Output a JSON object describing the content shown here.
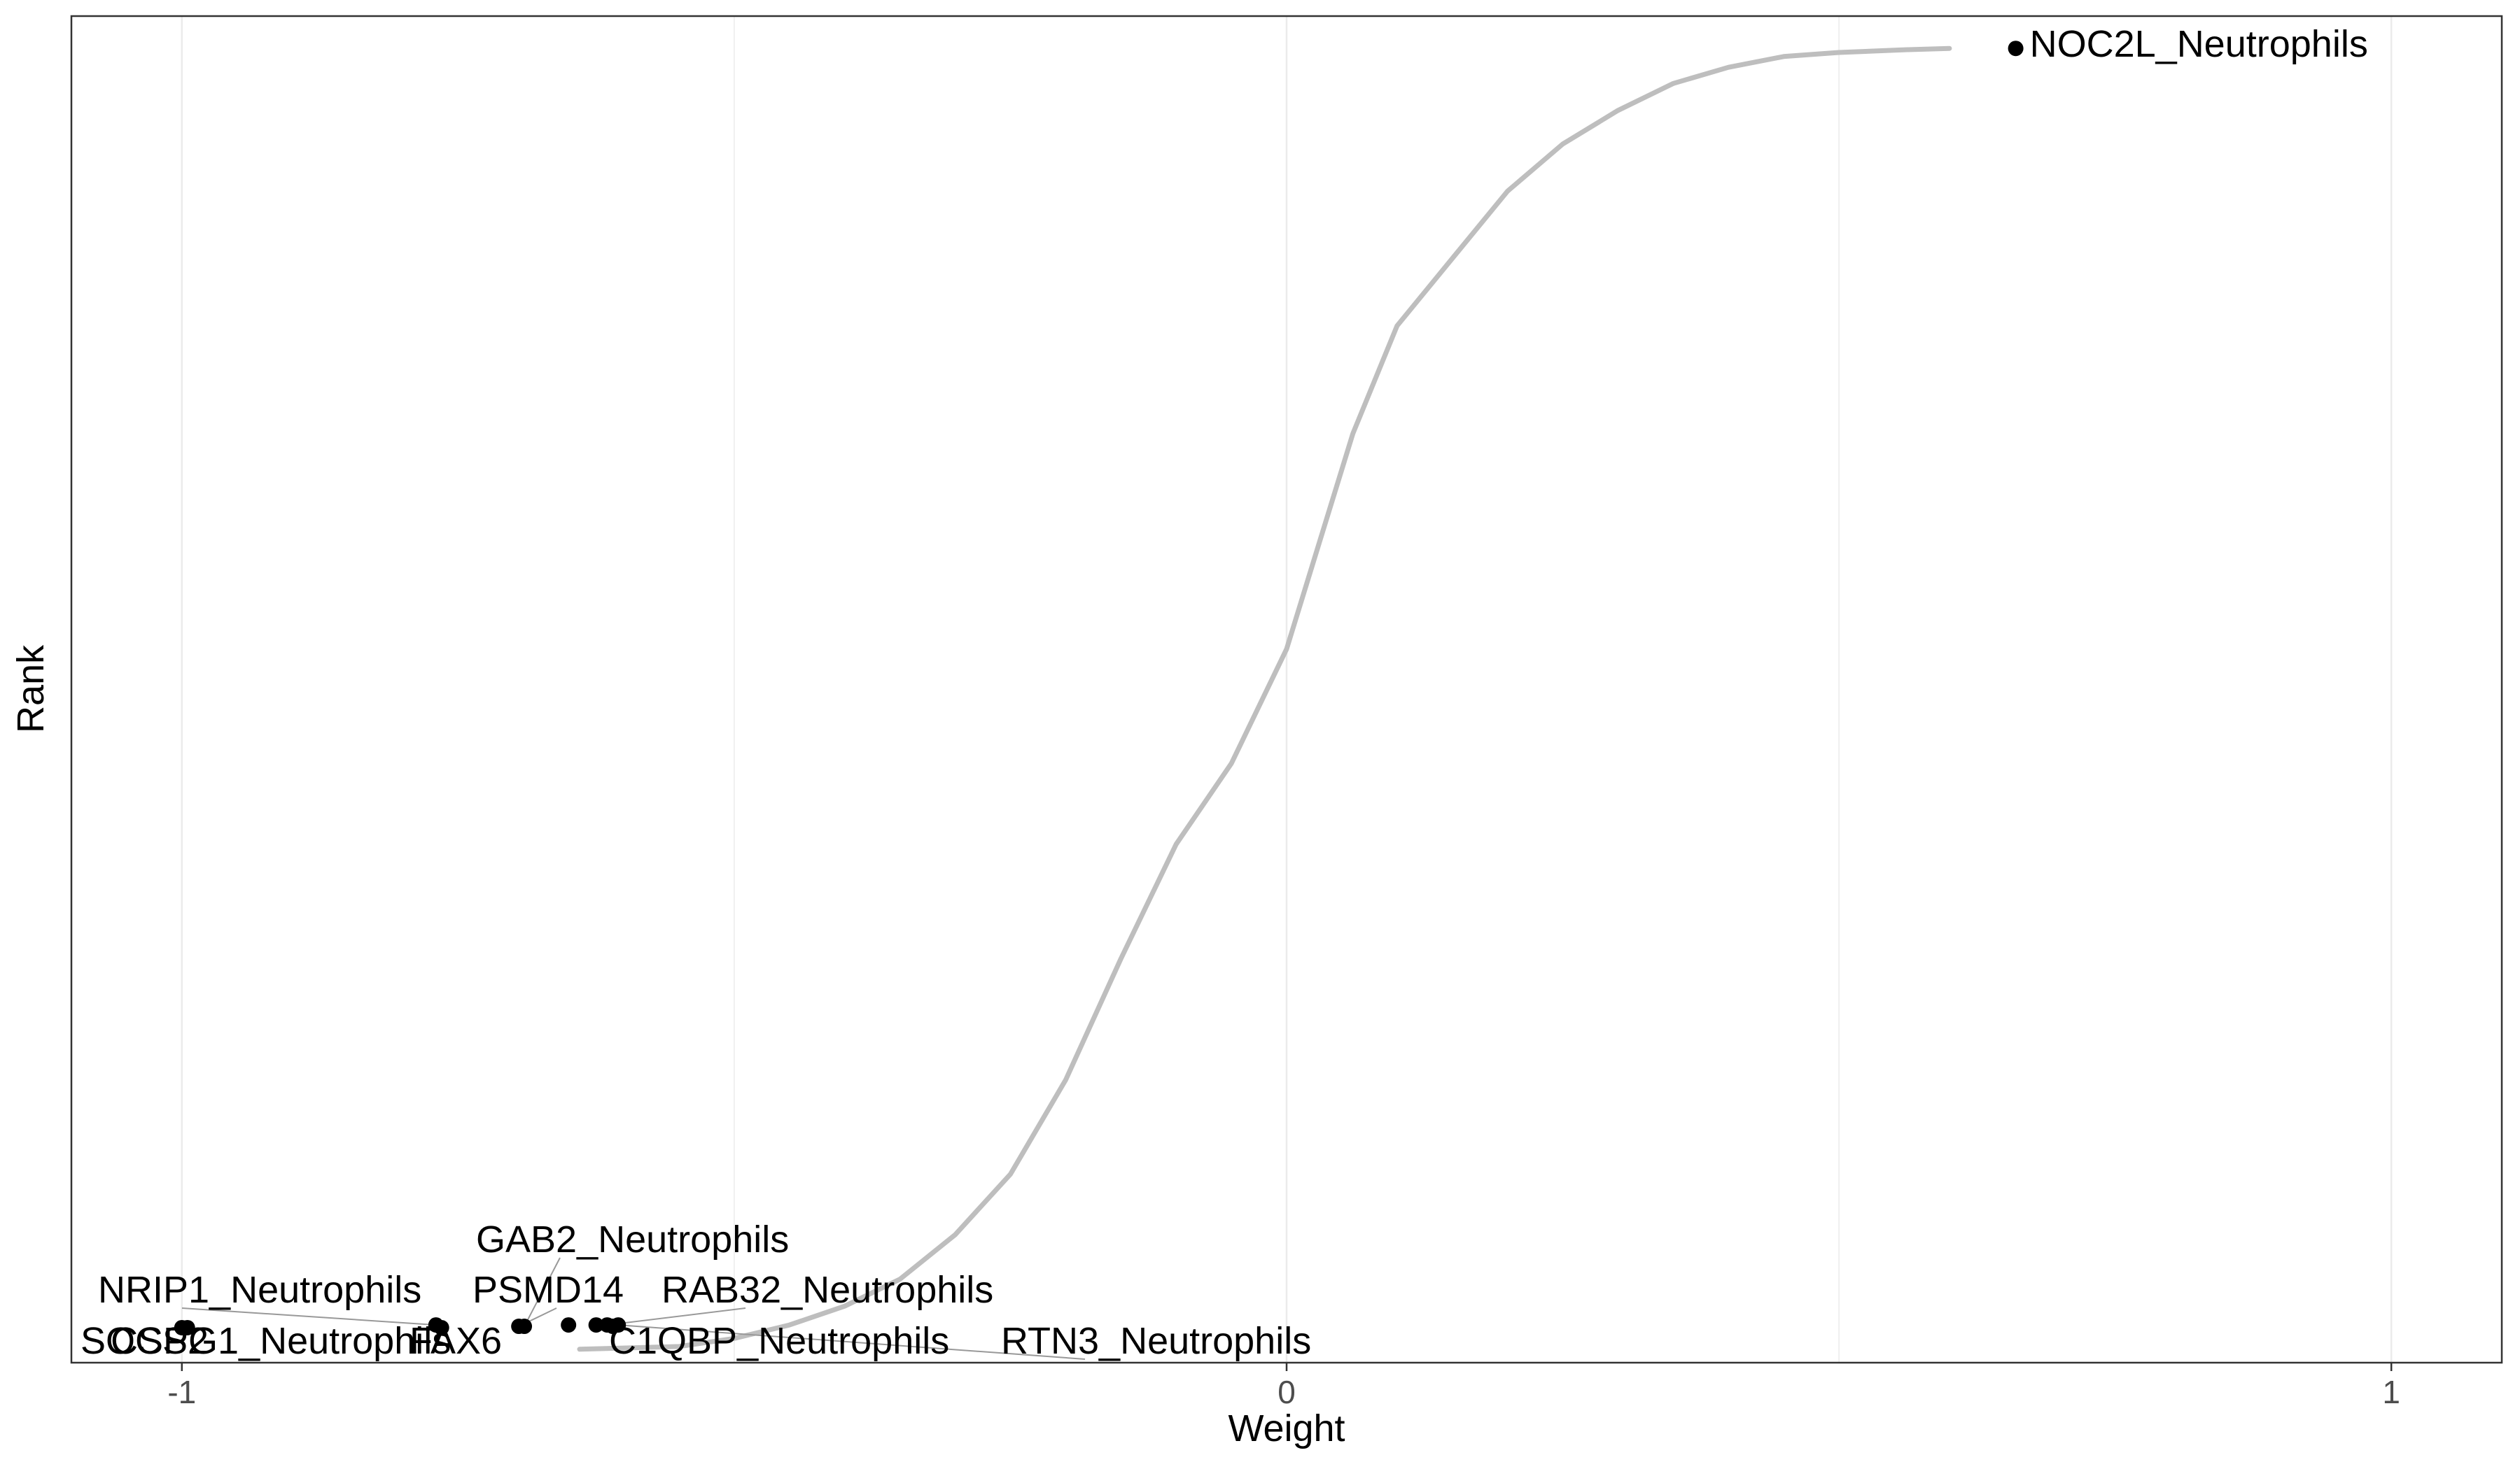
{
  "chart_data": {
    "type": "scatter",
    "title": "",
    "xlabel": "Weight",
    "ylabel": "Rank",
    "xlim": [
      -1.1,
      1.1
    ],
    "ylim": [
      0,
      1
    ],
    "x_ticks": [
      {
        "value": -1,
        "label": "-1"
      },
      {
        "value": 0,
        "label": "0"
      },
      {
        "value": 1,
        "label": "1"
      }
    ],
    "minor_grid_x": [
      -0.5,
      0.5
    ],
    "grid": true,
    "legend": "none",
    "colors": {
      "background_curve": "#bebebe",
      "highlight_points": "#000000",
      "grid": "#ebebeb",
      "panel_border": "#333333",
      "leader_lines": "#999999"
    },
    "curve": [
      [
        -0.64,
        0.01
      ],
      [
        -0.55,
        0.012
      ],
      [
        -0.5,
        0.018
      ],
      [
        -0.45,
        0.028
      ],
      [
        -0.4,
        0.042
      ],
      [
        -0.35,
        0.062
      ],
      [
        -0.3,
        0.095
      ],
      [
        -0.25,
        0.14
      ],
      [
        -0.2,
        0.21
      ],
      [
        -0.15,
        0.3
      ],
      [
        -0.1,
        0.385
      ],
      [
        -0.05,
        0.445
      ],
      [
        0.0,
        0.53
      ],
      [
        0.03,
        0.61
      ],
      [
        0.06,
        0.69
      ],
      [
        0.1,
        0.77
      ],
      [
        0.15,
        0.82
      ],
      [
        0.2,
        0.87
      ],
      [
        0.25,
        0.905
      ],
      [
        0.3,
        0.93
      ],
      [
        0.35,
        0.95
      ],
      [
        0.4,
        0.962
      ],
      [
        0.45,
        0.97
      ],
      [
        0.5,
        0.973
      ],
      [
        0.56,
        0.975
      ],
      [
        0.6,
        0.976
      ]
    ],
    "highlighted": [
      {
        "name": "NOC2L_Neutrophils",
        "x": 0.66,
        "y": 0.976,
        "label": "NOC2L_Neutrophils"
      },
      {
        "name": "SOCS2",
        "x": -1.0,
        "y": 0.026,
        "label": "SOCS2"
      },
      {
        "name": "CSPG1_Neutrophils",
        "x": -0.995,
        "y": 0.026,
        "label": "CSPG1_Neutrophils"
      },
      {
        "name": "NRIP1_Neutrophils",
        "x": -0.77,
        "y": 0.028,
        "label": "NRIP1_Neutrophils"
      },
      {
        "name": "FAX6",
        "x": -0.765,
        "y": 0.026,
        "label": "FAX6"
      },
      {
        "name": "PSMD14",
        "x": -0.695,
        "y": 0.027,
        "label": "PSMD14"
      },
      {
        "name": "GAB2_Neutrophils",
        "x": -0.69,
        "y": 0.027,
        "label": "GAB2_Neutrophils"
      },
      {
        "name": "P1",
        "x": -0.65,
        "y": 0.028,
        "label": ""
      },
      {
        "name": "P2",
        "x": -0.625,
        "y": 0.028,
        "label": ""
      },
      {
        "name": "RAB32_Neutrophils",
        "x": -0.615,
        "y": 0.028,
        "label": "RAB32_Neutrophils"
      },
      {
        "name": "C1QBP_Neutrophils",
        "x": -0.61,
        "y": 0.027,
        "label": "C1QBP_Neutrophils"
      },
      {
        "name": "RTN3_Neutrophils",
        "x": -0.605,
        "y": 0.028,
        "label": "RTN3_Neutrophils"
      }
    ]
  }
}
